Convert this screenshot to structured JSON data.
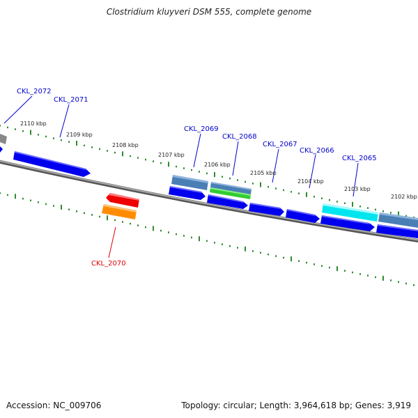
{
  "title": "Clostridium kluyveri DSM 555, complete genome",
  "footer": {
    "accession": "Accession: NC_009706",
    "stats": "Topology: circular; Length: 3,964,618 bp; Genes: 3,919"
  },
  "colors": {
    "forward_label": "#0000cc",
    "reverse_label": "#dd0000",
    "tick": "#2e8b2e",
    "backbone": "#888888",
    "gene_blue": "#0000ee",
    "gene_steel": "#4a7fb5",
    "gene_green": "#33cc33",
    "gene_cyan": "#00e5ee",
    "gene_red": "#ee0000",
    "gene_orange": "#ff8c00",
    "gene_gray": "#888888"
  },
  "kbp_markers": [
    "2110 kbp",
    "2109 kbp",
    "2108 kbp",
    "2107 kbp",
    "2106 kbp",
    "2105 kbp",
    "2104 kbp",
    "2103 kbp",
    "2102 kbp"
  ],
  "gene_labels": [
    {
      "text": "CKL_2072",
      "strand": "forward"
    },
    {
      "text": "CKL_2071",
      "strand": "forward"
    },
    {
      "text": "CKL_2069",
      "strand": "forward"
    },
    {
      "text": "CKL_2068",
      "strand": "forward"
    },
    {
      "text": "CKL_2067",
      "strand": "forward"
    },
    {
      "text": "CKL_2066",
      "strand": "forward"
    },
    {
      "text": "CKL_2065",
      "strand": "forward"
    },
    {
      "text": "CKL_2070",
      "strand": "reverse"
    }
  ]
}
